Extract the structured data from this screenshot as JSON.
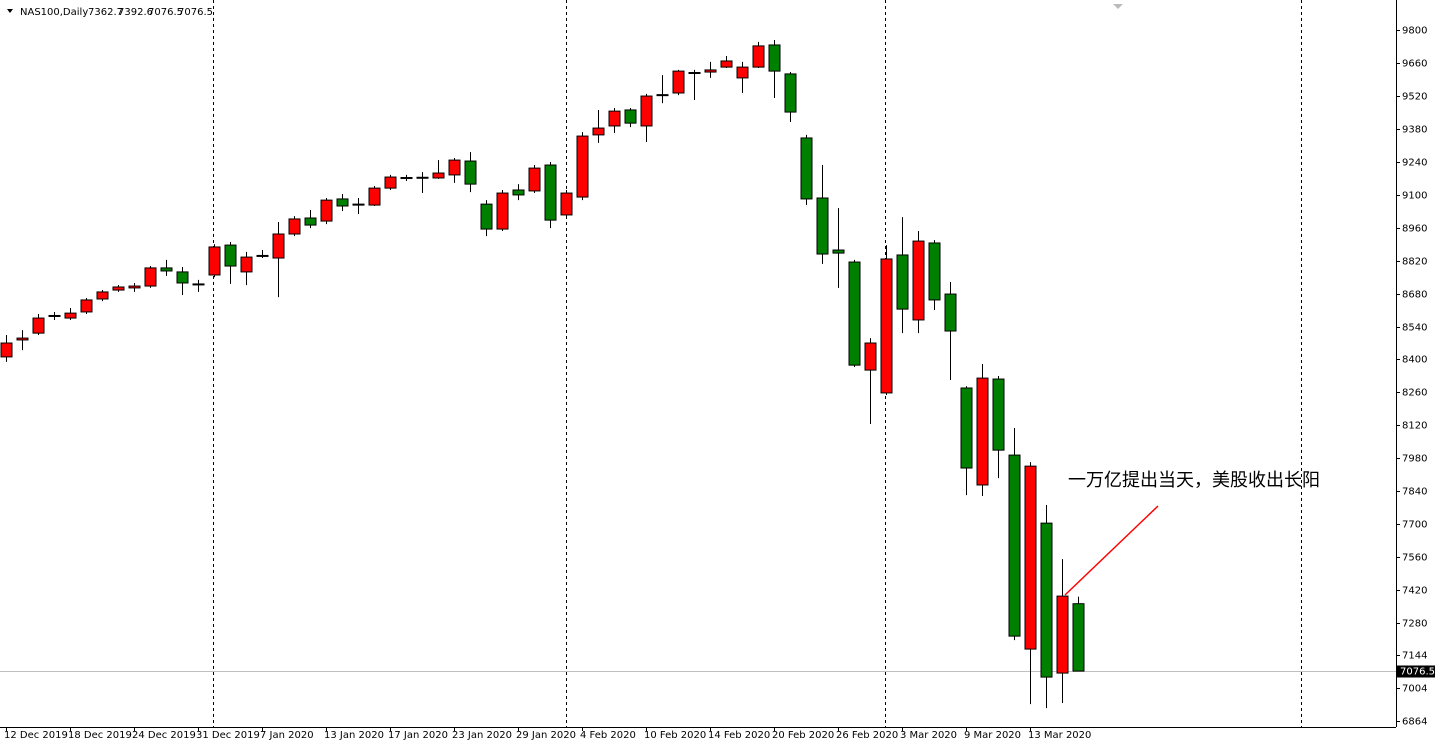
{
  "chart_data": {
    "type": "candlestick",
    "symbol": "NAS100,Daily",
    "annotation": "一万亿提出当天，美股收出长阳",
    "up_color": "#ff0000",
    "down_color": "#008000",
    "categories": [
      "12 Dec 2019",
      null,
      null,
      null,
      "18 Dec 2019",
      null,
      null,
      null,
      "24 Dec 2019",
      null,
      null,
      null,
      "31 Dec 2019",
      null,
      null,
      null,
      "7 Jan 2020",
      null,
      null,
      null,
      "13 Jan 2020",
      null,
      null,
      null,
      "17 Jan 2020",
      null,
      null,
      null,
      "23 Jan 2020",
      null,
      null,
      null,
      "29 Jan 2020",
      null,
      null,
      null,
      "4 Feb 2020",
      null,
      null,
      null,
      "10 Feb 2020",
      null,
      null,
      null,
      "14 Feb 2020",
      null,
      null,
      null,
      "20 Feb 2020",
      null,
      null,
      null,
      "26 Feb 2020",
      null,
      null,
      null,
      "3 Mar 2020",
      null,
      null,
      null,
      "9 Mar 2020",
      null,
      null,
      null,
      "13 Mar 2020",
      null,
      null,
      null
    ],
    "open": [
      8411,
      8483,
      8512,
      8584,
      8576,
      8602,
      8657,
      8695,
      8704,
      8712,
      8789,
      8772,
      8721,
      8759,
      8886,
      8772,
      8840,
      8831,
      8933,
      9001,
      8988,
      9082,
      9060,
      9056,
      9128,
      9171,
      9171,
      9171,
      9184,
      9243,
      9060,
      8954,
      9120,
      9116,
      9226,
      9014,
      9090,
      9354,
      9392,
      9460,
      9392,
      9523,
      9532,
      9617,
      9621,
      9642,
      9596,
      9642,
      9736,
      9613,
      9341,
      9086,
      8865,
      8814,
      8355,
      8258,
      8844,
      8568,
      8895,
      8678,
      8279,
      7867,
      8317,
      7994,
      7170,
      7705,
      7068,
      7362.7
    ],
    "high": [
      8504,
      8525,
      8593,
      8602,
      8619,
      8661,
      8695,
      8716,
      8725,
      8797,
      8823,
      8793,
      8738,
      8890,
      8899,
      8857,
      8865,
      8984,
      9009,
      9035,
      9086,
      9103,
      9086,
      9137,
      9184,
      9184,
      9196,
      9247,
      9256,
      9281,
      9077,
      9120,
      9145,
      9226,
      9239,
      9120,
      9366,
      9460,
      9468,
      9468,
      9528,
      9608,
      9630,
      9630,
      9664,
      9689,
      9664,
      9749,
      9757,
      9621,
      9354,
      9226,
      9043,
      8823,
      8491,
      8886,
      9005,
      8946,
      8907,
      8729,
      8287,
      8381,
      8330,
      8109,
      7964,
      7782,
      7552,
      7392.6
    ],
    "low": [
      8390,
      8440,
      8504,
      8568,
      8568,
      8593,
      8648,
      8687,
      8687,
      8704,
      8755,
      8674,
      8687,
      8750,
      8721,
      8716,
      8831,
      8665,
      8924,
      8958,
      8975,
      9031,
      9018,
      9052,
      9120,
      9158,
      9107,
      9167,
      9150,
      9111,
      8924,
      8946,
      9077,
      9107,
      8958,
      9001,
      9077,
      9320,
      9362,
      9387,
      9324,
      9489,
      9523,
      9502,
      9596,
      9638,
      9532,
      9638,
      9511,
      9409,
      9056,
      8806,
      8704,
      8368,
      8126,
      8249,
      8512,
      8512,
      8610,
      8313,
      7824,
      7820,
      7896,
      7208,
      6936,
      6919,
      6941,
      7076.5
    ],
    "close": [
      8470,
      8491,
      8576,
      8587,
      8597,
      8653,
      8687,
      8708,
      8712,
      8789,
      8776,
      8725,
      8719,
      8878,
      8797,
      8835,
      8842,
      8933,
      8997,
      8971,
      9077,
      9052,
      9058,
      9128,
      9175,
      9173,
      9174,
      9192,
      9247,
      9145,
      8954,
      9107,
      9099,
      9213,
      8992,
      9107,
      9349,
      9383,
      9455,
      9404,
      9519,
      9525,
      9625,
      9619,
      9630,
      9668,
      9642,
      9732,
      9625,
      9451,
      9082,
      8848,
      8852,
      8376,
      8470,
      8827,
      8614,
      8903,
      8653,
      8521,
      7939,
      8321,
      8015,
      7225,
      7947,
      7051,
      7395,
      7076.5
    ],
    "ylim": [
      6839,
      9927
    ],
    "yticks": [
      9800,
      9660,
      9520,
      9380,
      9240,
      9100,
      8960,
      8820,
      8680,
      8540,
      8400,
      8260,
      8120,
      7980,
      7840,
      7700,
      7560,
      7420,
      7280,
      7144,
      7004,
      6864
    ]
  }
}
